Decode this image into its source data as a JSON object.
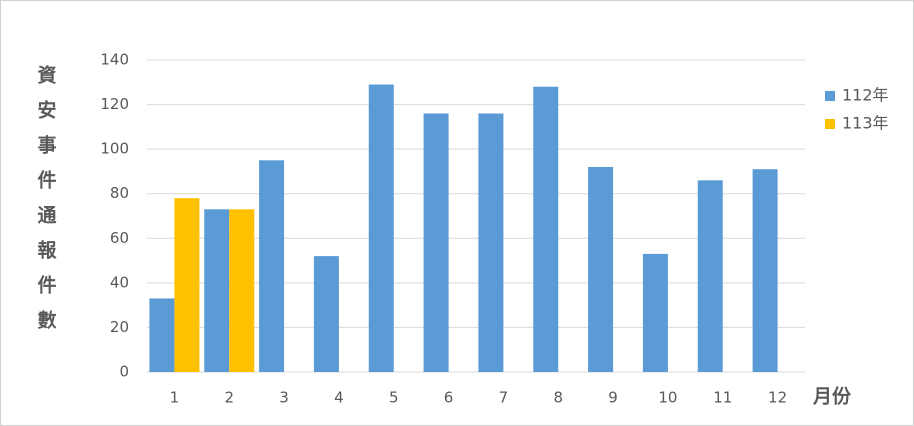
{
  "chart_data": {
    "type": "bar",
    "ylabel": "資安事件通報件數",
    "xlabel": "月份",
    "categories": [
      "1",
      "2",
      "3",
      "4",
      "5",
      "6",
      "7",
      "8",
      "9",
      "10",
      "11",
      "12"
    ],
    "series": [
      {
        "name": "112年",
        "color": "#5b9bd5",
        "values": [
          33,
          73,
          95,
          52,
          129,
          116,
          116,
          128,
          92,
          53,
          86,
          91
        ]
      },
      {
        "name": "113年",
        "color": "#ffc000",
        "values": [
          78,
          73,
          null,
          null,
          null,
          null,
          null,
          null,
          null,
          null,
          null,
          null
        ]
      }
    ],
    "ylim": [
      0,
      140
    ],
    "yticks": [
      0,
      20,
      40,
      60,
      80,
      100,
      120,
      140
    ],
    "grid": true,
    "legend": "right"
  }
}
